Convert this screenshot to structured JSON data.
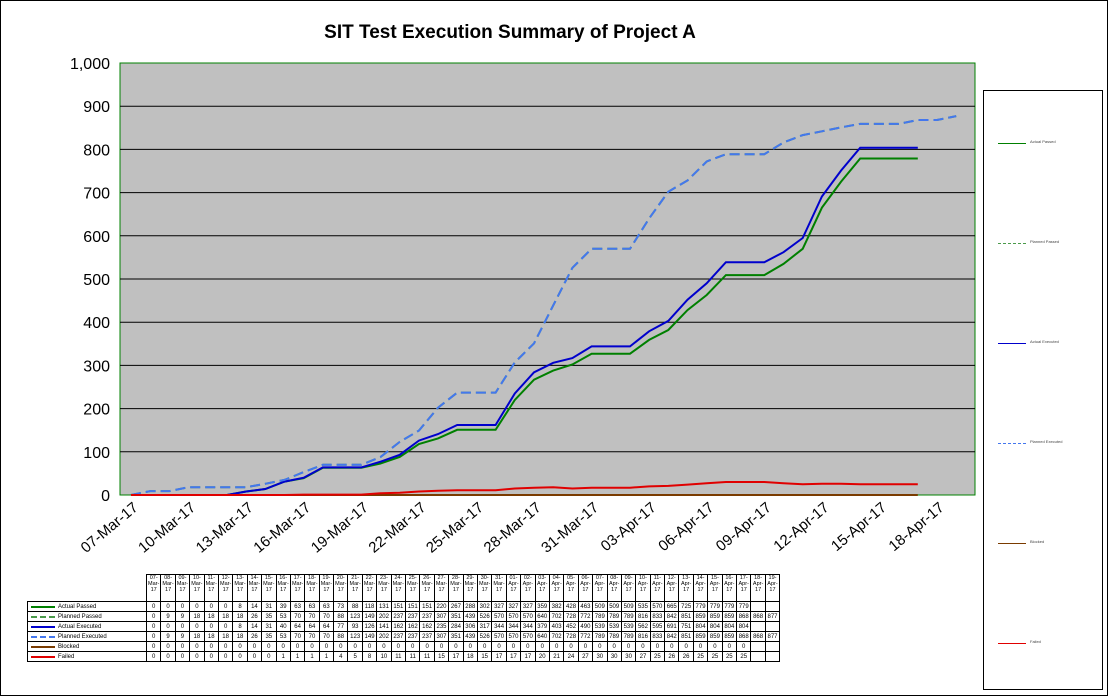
{
  "chart_data": {
    "type": "line",
    "title": "SIT Test Execution  Summary  of Project A",
    "ylim": [
      0,
      1000
    ],
    "yticks": [
      "0",
      "100",
      "200",
      "300",
      "400",
      "500",
      "600",
      "700",
      "800",
      "900",
      "1,000"
    ],
    "x_tick_labels": [
      "07-Mar-17",
      "10-Mar-17",
      "13-Mar-17",
      "16-Mar-17",
      "19-Mar-17",
      "22-Mar-17",
      "25-Mar-17",
      "28-Mar-17",
      "31-Mar-17",
      "03-Apr-17",
      "06-Apr-17",
      "09-Apr-17",
      "12-Apr-17",
      "15-Apr-17",
      "18-Apr-17"
    ],
    "table_header": [
      "07-Mar-17",
      "08-Mar-17",
      "09-Mar-17",
      "10-Mar-17",
      "11-Mar-17",
      "12-Mar-17",
      "13-Mar-17",
      "14-Mar-17",
      "15-Mar-17",
      "16-Mar-17",
      "17-Mar-17",
      "18-Mar-17",
      "19-Mar-17",
      "20-Mar-17",
      "21-Mar-17",
      "22-Mar-17",
      "23-Mar-17",
      "24-Mar-17",
      "25-Mar-17",
      "26-Mar-17",
      "27-Mar-17",
      "28-Mar-17",
      "29-Mar-17",
      "30-Mar-17",
      "31-Mar-17",
      "01-Apr-17",
      "02-Apr-17",
      "03-Apr-17",
      "04-Apr-17",
      "05-Apr-17",
      "06-Apr-17",
      "07-Apr-17",
      "08-Apr-17",
      "09-Apr-17",
      "10-Apr-17",
      "11-Apr-17",
      "12-Apr-17",
      "13-Apr-17",
      "14-Apr-17",
      "15-Apr-17",
      "16-Apr-17",
      "17-Apr-17",
      "18-Apr-17",
      "19-Apr-17"
    ],
    "series": [
      {
        "name": "Actual Passed",
        "color": "#008000",
        "dash": false,
        "values": [
          0,
          0,
          0,
          0,
          0,
          0,
          8,
          14,
          31,
          39,
          63,
          63,
          63,
          73,
          88,
          118,
          131,
          151,
          151,
          151,
          220,
          267,
          288,
          302,
          327,
          327,
          327,
          359,
          382,
          428,
          463,
          509,
          509,
          509,
          535,
          570,
          665,
          725,
          779,
          779,
          779,
          779,
          null,
          null
        ]
      },
      {
        "name": "Planned Passed",
        "color": "#4a9a4a",
        "dash": true,
        "values": [
          0,
          9,
          9,
          18,
          18,
          18,
          18,
          26,
          35,
          53,
          70,
          70,
          70,
          88,
          123,
          149,
          202,
          237,
          237,
          237,
          307,
          351,
          439,
          526,
          570,
          570,
          570,
          640,
          702,
          728,
          772,
          789,
          789,
          789,
          816,
          833,
          842,
          851,
          859,
          859,
          859,
          868,
          868,
          877
        ]
      },
      {
        "name": "Actual Executed",
        "color": "#0000cc",
        "dash": false,
        "values": [
          0,
          0,
          0,
          0,
          0,
          0,
          8,
          14,
          31,
          40,
          64,
          64,
          64,
          77,
          93,
          126,
          141,
          162,
          162,
          162,
          235,
          284,
          306,
          317,
          344,
          344,
          344,
          379,
          403,
          452,
          490,
          539,
          539,
          539,
          562,
          595,
          691,
          751,
          804,
          804,
          804,
          804,
          null,
          null
        ]
      },
      {
        "name": "Planned Executed",
        "color": "#4477ee",
        "dash": true,
        "values": [
          0,
          9,
          9,
          18,
          18,
          18,
          18,
          26,
          35,
          53,
          70,
          70,
          70,
          88,
          123,
          149,
          202,
          237,
          237,
          237,
          307,
          351,
          439,
          526,
          570,
          570,
          570,
          640,
          702,
          728,
          772,
          789,
          789,
          789,
          816,
          833,
          842,
          851,
          859,
          859,
          859,
          868,
          868,
          877
        ]
      },
      {
        "name": "Blocked",
        "color": "#7a3b00",
        "dash": false,
        "values": [
          0,
          0,
          0,
          0,
          0,
          0,
          0,
          0,
          0,
          0,
          0,
          0,
          0,
          0,
          0,
          0,
          0,
          0,
          0,
          0,
          0,
          0,
          0,
          0,
          0,
          0,
          0,
          0,
          0,
          0,
          0,
          0,
          0,
          0,
          0,
          0,
          0,
          0,
          0,
          0,
          0,
          0,
          null,
          null
        ]
      },
      {
        "name": "Failed",
        "color": "#e00000",
        "dash": false,
        "values": [
          0,
          0,
          0,
          0,
          0,
          0,
          0,
          0,
          0,
          1,
          1,
          1,
          1,
          4,
          5,
          8,
          10,
          11,
          11,
          11,
          15,
          17,
          18,
          15,
          17,
          17,
          17,
          20,
          21,
          24,
          27,
          30,
          30,
          30,
          27,
          25,
          26,
          26,
          25,
          25,
          25,
          25,
          null,
          null
        ]
      }
    ],
    "grid": true,
    "legend": "right"
  },
  "legend_labels": [
    "Actual Passed",
    "Planned Passed",
    "Actual Executed",
    "Planned Executed",
    "Blocked",
    "Failed"
  ]
}
